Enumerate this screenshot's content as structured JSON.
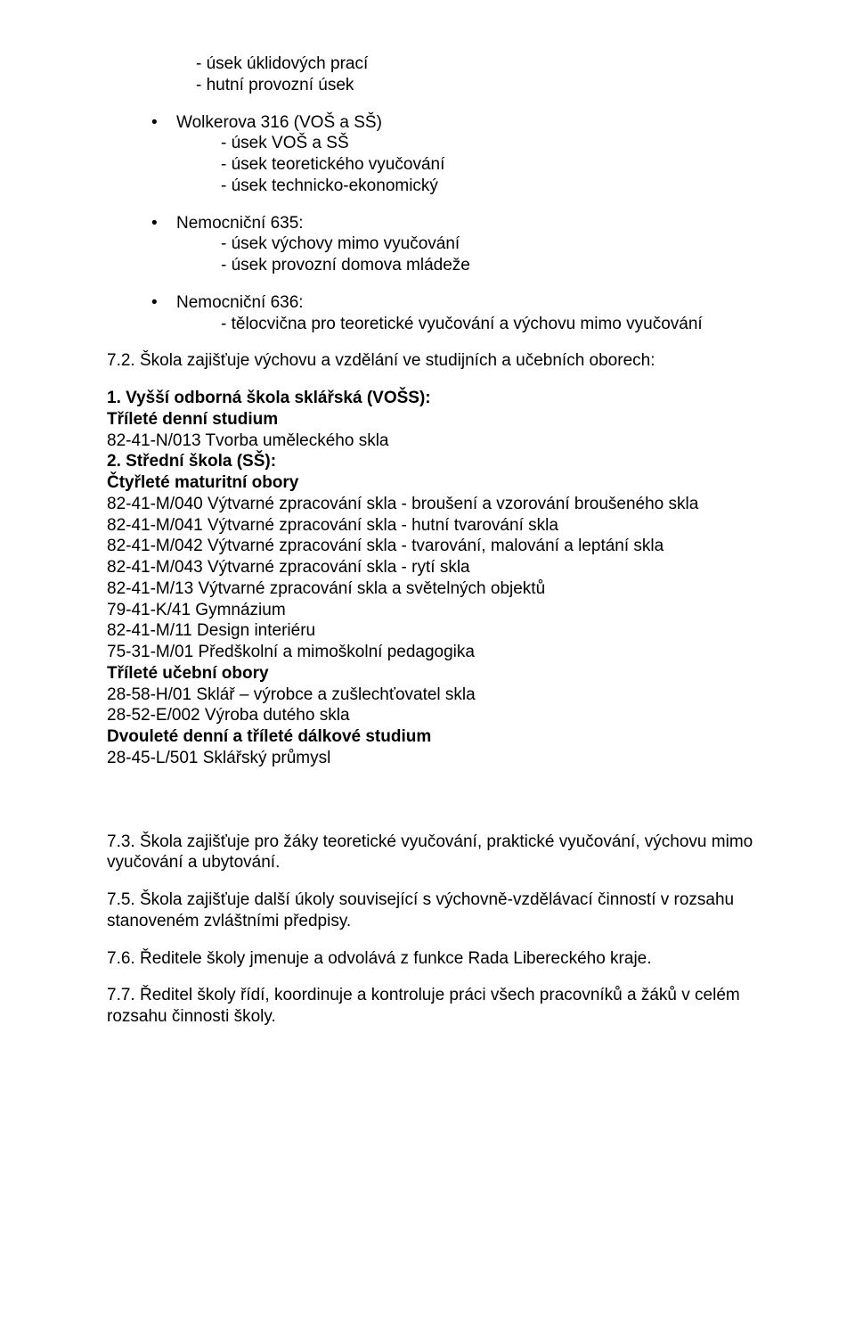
{
  "top_dashes": [
    "- úsek úklidových prací",
    "- hutní provozní úsek"
  ],
  "bullets": [
    {
      "title": "Wolkerova 316 (VOŠ a SŠ)",
      "items": [
        "- úsek VOŠ a SŠ",
        "- úsek teoretického vyučování",
        "- úsek technicko-ekonomický"
      ]
    },
    {
      "title": "Nemocniční 635:",
      "items": [
        "- úsek výchovy mimo vyučování",
        "- úsek provozní domova mládeže"
      ]
    },
    {
      "title": "Nemocniční 636:",
      "items": [
        "- tělocvična pro teoretické vyučování a výchovu mimo vyučování"
      ]
    }
  ],
  "s72_heading": "7.2. Škola zajišťuje výchovu a vzdělání ve studijních a učebních oborech:",
  "sec1_title": "1. Vyšší odborná škola sklářská (VOŠS):",
  "sec1_sub_bold": "Tříleté denní studium",
  "sec1_lines": [
    "82-41-N/013 Tvorba uměleckého skla"
  ],
  "sec2_title": "2. Střední škola (SŠ):",
  "sec2_sub_bold1": "Čtyřleté maturitní obory",
  "sec2_lines1": [
    "82-41-M/040 Výtvarné zpracování skla - broušení a vzorování broušeného skla",
    "82-41-M/041 Výtvarné zpracování skla - hutní tvarování skla",
    "82-41-M/042 Výtvarné zpracování skla - tvarování, malování a leptání skla",
    "82-41-M/043 Výtvarné zpracování skla - rytí skla",
    "82-41-M/13 Výtvarné zpracování skla a světelných objektů",
    "79-41-K/41 Gymnázium",
    "82-41-M/11 Design interiéru",
    "75-31-M/01 Předškolní a mimoškolní pedagogika"
  ],
  "sec2_sub_bold2": "Tříleté učební obory",
  "sec2_lines2": [
    "28-58-H/01 Sklář – výrobce a zušlechťovatel skla",
    "28-52-E/002 Výroba dutého skla"
  ],
  "sec2_sub_bold3": "Dvouleté denní a tříleté dálkové studium",
  "sec2_lines3": [
    "28-45-L/501 Sklářský průmysl"
  ],
  "p73": "7.3. Škola zajišťuje pro žáky teoretické vyučování, praktické vyučování, výchovu mimo vyučování a ubytování.",
  "p75": "7.5. Škola zajišťuje další úkoly související s výchovně-vzdělávací činností v rozsahu  stanoveném zvláštními předpisy.",
  "p76": "7.6. Ředitele školy jmenuje a odvolává z funkce Rada Libereckého kraje.",
  "p77": "7.7. Ředitel školy řídí, koordinuje a kontroluje práci všech pracovníků a žáků v celém rozsahu činnosti školy."
}
